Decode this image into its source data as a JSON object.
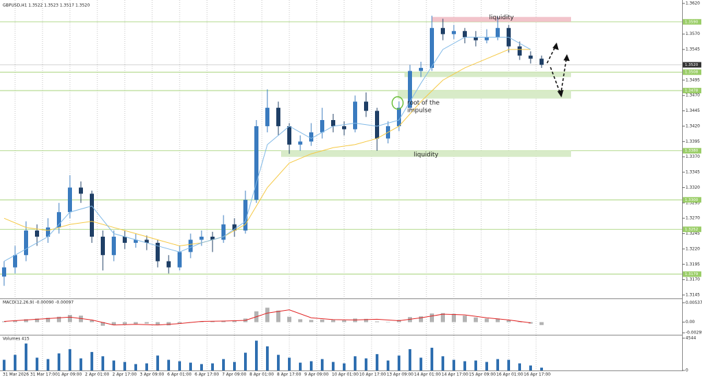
{
  "chart_data": {
    "type": "candlestick",
    "title": "GBPUSD,H1  1.3522 1.3523 1.3517 1.3520",
    "time_labels": [
      "31 Mar 2026",
      "31 Mar 17:00",
      "1 Apr 09:00",
      "2 Apr 01:00",
      "2 Apr 17:00",
      "3 Apr 09:00",
      "6 Apr 01:00",
      "6 Apr 17:00",
      "7 Apr 09:00",
      "8 Apr 01:00",
      "8 Apr 17:00",
      "9 Apr 09:00",
      "10 Apr 01:00",
      "10 Apr 17:00",
      "13 Apr 09:00",
      "14 Apr 01:00",
      "14 Apr 17:00",
      "15 Apr 09:00",
      "16 Apr 01:00",
      "16 Apr 17:00"
    ],
    "up_color": "#3a7bbf",
    "down_color": "#1f3f66",
    "ohlc": [
      [
        1.3175,
        1.32,
        1.316,
        1.319
      ],
      [
        1.319,
        1.3225,
        1.318,
        1.321
      ],
      [
        1.321,
        1.3265,
        1.32,
        1.325
      ],
      [
        1.325,
        1.326,
        1.3225,
        1.324
      ],
      [
        1.324,
        1.327,
        1.323,
        1.3255
      ],
      [
        1.3255,
        1.3295,
        1.3245,
        1.328
      ],
      [
        1.328,
        1.334,
        1.327,
        1.332
      ],
      [
        1.332,
        1.333,
        1.3295,
        1.331
      ],
      [
        1.331,
        1.3315,
        1.323,
        1.324
      ],
      [
        1.324,
        1.325,
        1.3185,
        1.321
      ],
      [
        1.321,
        1.325,
        1.32,
        1.324
      ],
      [
        1.324,
        1.325,
        1.322,
        1.323
      ],
      [
        1.323,
        1.3245,
        1.3222,
        1.3235
      ],
      [
        1.3235,
        1.3242,
        1.3218,
        1.323
      ],
      [
        1.323,
        1.3235,
        1.319,
        1.32
      ],
      [
        1.32,
        1.321,
        1.318,
        1.319
      ],
      [
        1.319,
        1.3225,
        1.3185,
        1.3215
      ],
      [
        1.3215,
        1.3245,
        1.3205,
        1.3235
      ],
      [
        1.3235,
        1.325,
        1.3225,
        1.324
      ],
      [
        1.324,
        1.3248,
        1.3215,
        1.3235
      ],
      [
        1.3235,
        1.3275,
        1.323,
        1.326
      ],
      [
        1.326,
        1.327,
        1.324,
        1.325
      ],
      [
        1.325,
        1.3315,
        1.3245,
        1.33
      ],
      [
        1.33,
        1.343,
        1.3295,
        1.342
      ],
      [
        1.342,
        1.348,
        1.341,
        1.345
      ],
      [
        1.345,
        1.346,
        1.3405,
        1.342
      ],
      [
        1.342,
        1.3425,
        1.3375,
        1.339
      ],
      [
        1.339,
        1.3405,
        1.338,
        1.3395
      ],
      [
        1.3395,
        1.3425,
        1.3388,
        1.341
      ],
      [
        1.341,
        1.345,
        1.34,
        1.343
      ],
      [
        1.343,
        1.344,
        1.341,
        1.342
      ],
      [
        1.342,
        1.3428,
        1.3405,
        1.3415
      ],
      [
        1.3415,
        1.347,
        1.341,
        1.346
      ],
      [
        1.346,
        1.3475,
        1.3435,
        1.3445
      ],
      [
        1.3445,
        1.345,
        1.338,
        1.34
      ],
      [
        1.34,
        1.3428,
        1.3392,
        1.342
      ],
      [
        1.342,
        1.346,
        1.3412,
        1.345
      ],
      [
        1.345,
        1.352,
        1.3445,
        1.351
      ],
      [
        1.351,
        1.3525,
        1.35,
        1.3515
      ],
      [
        1.3515,
        1.36,
        1.351,
        1.358
      ],
      [
        1.358,
        1.3595,
        1.356,
        1.357
      ],
      [
        1.357,
        1.3585,
        1.3562,
        1.3575
      ],
      [
        1.3575,
        1.358,
        1.3555,
        1.3565
      ],
      [
        1.3565,
        1.3575,
        1.355,
        1.356
      ],
      [
        1.356,
        1.3578,
        1.3555,
        1.3565
      ],
      [
        1.3565,
        1.3598,
        1.356,
        1.358
      ],
      [
        1.358,
        1.3585,
        1.354,
        1.355
      ],
      [
        1.355,
        1.3558,
        1.3528,
        1.3535
      ],
      [
        1.3535,
        1.3542,
        1.3522,
        1.353
      ],
      [
        1.353,
        1.3535,
        1.3515,
        1.352
      ]
    ],
    "ylim": [
      1.3145,
      1.362
    ],
    "yticks": [
      {
        "value": 1.362,
        "label": "1.3620"
      },
      {
        "value": 1.357,
        "label": "1.3570"
      },
      {
        "value": 1.3545,
        "label": "1.3545"
      },
      {
        "value": 1.3495,
        "label": "1.3495"
      },
      {
        "value": 1.347,
        "label": "1.3470"
      },
      {
        "value": 1.3445,
        "label": "1.3445"
      },
      {
        "value": 1.342,
        "label": "1.3420"
      },
      {
        "value": 1.3395,
        "label": "1.3395"
      },
      {
        "value": 1.337,
        "label": "1.3370"
      },
      {
        "value": 1.3345,
        "label": "1.3345"
      },
      {
        "value": 1.332,
        "label": "1.3320"
      },
      {
        "value": 1.3295,
        "label": "1.3295"
      },
      {
        "value": 1.327,
        "label": "1.3270"
      },
      {
        "value": 1.3245,
        "label": "1.3245"
      },
      {
        "value": 1.322,
        "label": "1.3220"
      },
      {
        "value": 1.3195,
        "label": "1.3195"
      },
      {
        "value": 1.317,
        "label": "1.3170"
      },
      {
        "value": 1.3145,
        "label": "1.3145"
      }
    ],
    "level_color": "#9acd67",
    "levels": [
      {
        "value": 1.359,
        "label": "1.3590"
      },
      {
        "value": 1.3508,
        "label": "1.3508"
      },
      {
        "value": 1.3478,
        "label": "1.3478"
      },
      {
        "value": 1.338,
        "label": "1.3380"
      },
      {
        "value": 1.33,
        "label": "1.3300"
      },
      {
        "value": 1.3252,
        "label": "1.3252"
      },
      {
        "value": 1.3179,
        "label": "1.3179"
      }
    ],
    "current_price": {
      "value": 1.352,
      "label": "1.3520"
    },
    "zones": [
      {
        "top": 1.3598,
        "bottom": 1.359,
        "color": "#f2c4cb",
        "label": "liquidity"
      },
      {
        "top": 1.3508,
        "bottom": 1.35,
        "color": "#d8ebc8"
      },
      {
        "top": 1.3478,
        "bottom": 1.3465,
        "color": "#d8ebc8"
      },
      {
        "top": 1.338,
        "bottom": 1.337,
        "color": "#d8ebc8",
        "label": "liquidity"
      }
    ],
    "annotation": [
      "root of the",
      "impulse"
    ],
    "ma": {
      "x": [
        0,
        2,
        4,
        6,
        8,
        10,
        12,
        14,
        16,
        18,
        20,
        22,
        24,
        26,
        28,
        30,
        32,
        34,
        36,
        38,
        40,
        42,
        44,
        46,
        48
      ],
      "series": [
        {
          "color": "#f5c842",
          "values": [
            1.327,
            1.3255,
            1.325,
            1.326,
            1.3265,
            1.3255,
            1.3245,
            1.3235,
            1.3225,
            1.323,
            1.324,
            1.326,
            1.332,
            1.336,
            1.3375,
            1.3385,
            1.339,
            1.34,
            1.342,
            1.346,
            1.3495,
            1.3515,
            1.353,
            1.3545,
            1.3545
          ]
        },
        {
          "color": "#7fb8e6",
          "values": [
            1.32,
            1.322,
            1.324,
            1.328,
            1.329,
            1.3245,
            1.3235,
            1.3225,
            1.3215,
            1.323,
            1.324,
            1.3265,
            1.339,
            1.342,
            1.34,
            1.342,
            1.3425,
            1.342,
            1.343,
            1.349,
            1.3545,
            1.3565,
            1.3565,
            1.3565,
            1.3545
          ]
        }
      ]
    },
    "macd": {
      "title": "MACD(12,26,9) -0.00090 -0.00097",
      "hist_color": "#b3b3b3",
      "signal_color": "#e02020",
      "histogram": [
        0.0002,
        0.0004,
        0.0008,
        0.001,
        0.0012,
        0.0015,
        0.002,
        0.0018,
        0.0005,
        -0.001,
        -0.0008,
        -0.0006,
        -0.0005,
        -0.0004,
        -0.0007,
        -0.0009,
        -0.0004,
        0,
        0.0002,
        0.0002,
        0.0004,
        0.0003,
        0.001,
        0.003,
        0.004,
        0.0032,
        0.0015,
        0.0008,
        0.0006,
        0.0007,
        0.0006,
        0.0005,
        0.001,
        0.0009,
        0.0002,
        0.0001,
        0.0006,
        0.0014,
        0.0016,
        0.0024,
        0.0025,
        0.0023,
        0.0018,
        0.0013,
        0.001,
        0.001,
        0.0005,
        0,
        -0.0004,
        -0.0008
      ],
      "signal_x": [
        0,
        2,
        4,
        6,
        8,
        10,
        12,
        14,
        16,
        18,
        20,
        22,
        24,
        26,
        28,
        30,
        32,
        34,
        36,
        38,
        40,
        42,
        44,
        46,
        48
      ],
      "signal": [
        0.0002,
        0.0006,
        0.001,
        0.0014,
        0.0006,
        -0.0008,
        -0.0006,
        -0.0008,
        -0.0004,
        0.0002,
        0.0003,
        0.0005,
        0.0025,
        0.0034,
        0.0012,
        0.0007,
        0.0006,
        0.0008,
        0.0004,
        0.0012,
        0.0022,
        0.002,
        0.0012,
        0.0006,
        -0.0002
      ],
      "ylim": [
        -0.0035,
        0.006
      ],
      "yticks": [
        {
          "value": 0.00537,
          "label": "0.00537"
        },
        {
          "value": 0,
          "label": "0.00"
        },
        {
          "value": -0.00295,
          "label": "-0.00295"
        }
      ]
    },
    "volume": {
      "title": "Volumes 415",
      "color": "#2f6fb0",
      "values": [
        1500,
        2200,
        3800,
        1800,
        1600,
        2400,
        3000,
        1700,
        2600,
        2000,
        1400,
        1200,
        900,
        1000,
        2100,
        1500,
        1300,
        1100,
        900,
        1000,
        1600,
        1200,
        2500,
        4200,
        3400,
        2200,
        1800,
        1100,
        1300,
        1600,
        1200,
        1000,
        2000,
        1700,
        2300,
        1400,
        2100,
        3000,
        1800,
        3200,
        2000,
        1500,
        1300,
        1400,
        1200,
        1600,
        1500,
        1000,
        700,
        400
      ],
      "ylim": [
        0,
        4544
      ],
      "yticks": [
        4544,
        0
      ]
    }
  }
}
